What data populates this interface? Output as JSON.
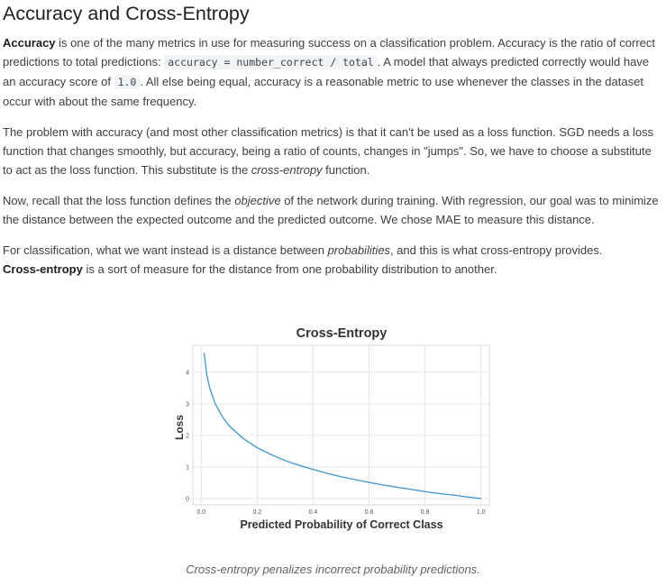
{
  "heading": "Accuracy and Cross-Entropy",
  "para1": {
    "term": "Accuracy",
    "t1": " is one of the many metrics in use for measuring success on a classification problem. Accuracy is the ratio of correct predictions to total predictions: ",
    "code1": "accuracy = number_correct / total",
    "t2": ". A model that always predicted correctly would have an accuracy score of ",
    "code2": "1.0",
    "t3": ". All else being equal, accuracy is a reasonable metric to use whenever the classes in the dataset occur with about the same frequency."
  },
  "para2": {
    "t1": "The problem with accuracy (and most other classification metrics) is that it can't be used as a loss function. SGD needs a loss function that changes smoothly, but accuracy, being a ratio of counts, changes in \"jumps\". So, we have to choose a substitute to act as the loss function. This substitute is the ",
    "em": "cross-entropy",
    "t2": " function."
  },
  "para3": {
    "t1": "Now, recall that the loss function defines the ",
    "em": "objective",
    "t2": " of the network during training. With regression, our goal was to minimize the distance between the expected outcome and the predicted outcome. We chose MAE to measure this distance."
  },
  "para4": {
    "t1": "For classification, what we want instead is a distance between ",
    "em": "probabilities",
    "t2": ", and this is what cross-entropy provides.",
    "term": "Cross-entropy",
    "t3": " is a sort of measure for the distance from one probability distribution to another."
  },
  "caption": "Cross-entropy penalizes incorrect probability predictions.",
  "chart_data": {
    "type": "line",
    "title": "Cross-Entropy",
    "xlabel": "Predicted Probability of Correct Class",
    "ylabel": "Loss",
    "xlim": [
      -0.03,
      1.03
    ],
    "ylim": [
      -0.2,
      4.85
    ],
    "xticks": [
      "0.0",
      "0.2",
      "0.4",
      "0.6",
      "0.8",
      "1.0"
    ],
    "yticks": [
      "0",
      "1",
      "2",
      "3",
      "4"
    ],
    "grid": true,
    "line_color": "#4a9bd2",
    "series": [
      {
        "x": [
          0.01,
          0.02,
          0.03,
          0.05,
          0.08,
          0.1,
          0.15,
          0.2,
          0.25,
          0.3,
          0.35,
          0.4,
          0.45,
          0.5,
          0.55,
          0.6,
          0.65,
          0.7,
          0.75,
          0.8,
          0.85,
          0.9,
          0.95,
          1.0
        ],
        "y": [
          4.61,
          3.91,
          3.51,
          3.0,
          2.53,
          2.3,
          1.9,
          1.61,
          1.39,
          1.2,
          1.05,
          0.92,
          0.8,
          0.69,
          0.6,
          0.51,
          0.43,
          0.36,
          0.29,
          0.22,
          0.16,
          0.11,
          0.05,
          0.0
        ]
      }
    ]
  }
}
